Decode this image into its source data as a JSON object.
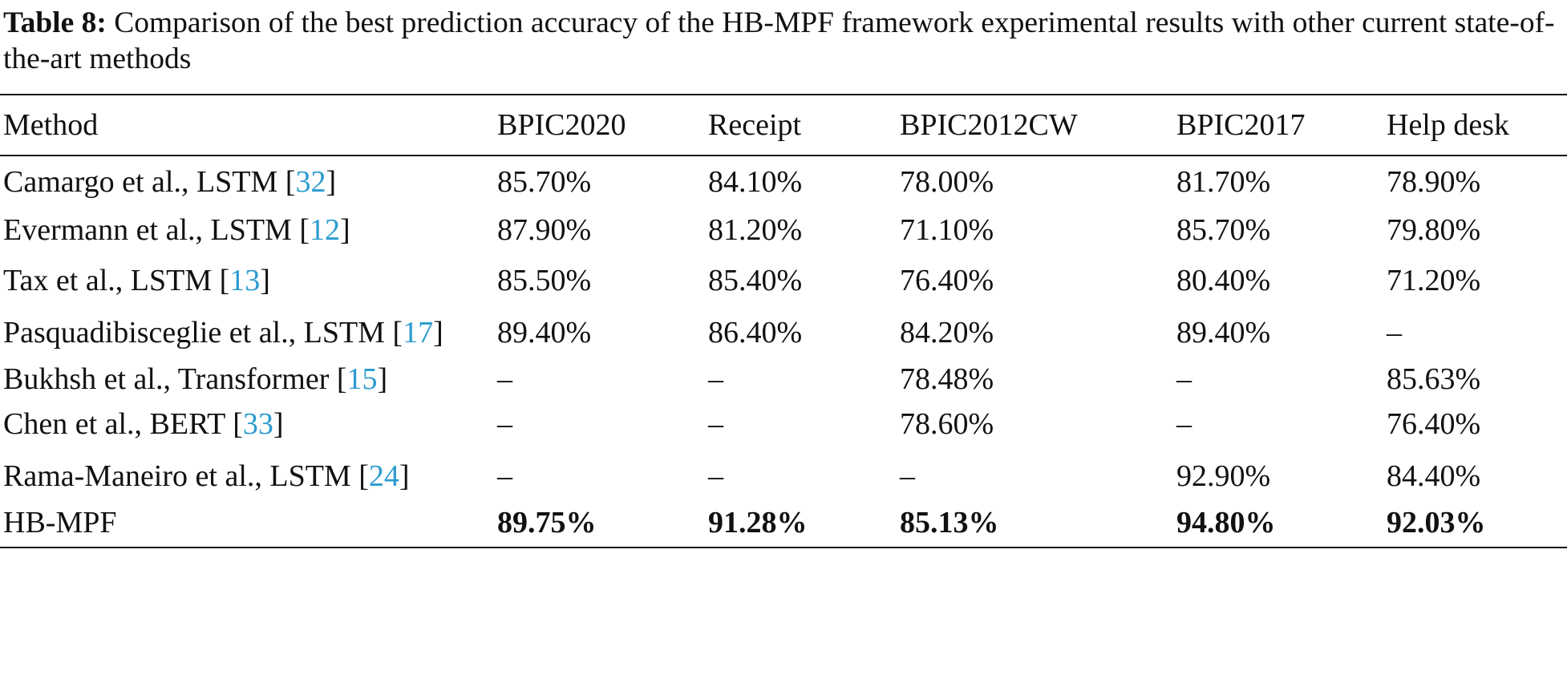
{
  "caption": {
    "label": "Table 8:",
    "text": " Comparison of the best prediction accuracy of the HB-MPF framework experimental results with other current state-of-the-art methods"
  },
  "table": {
    "headers": [
      "Method",
      "BPIC2020",
      "Receipt",
      "BPIC2012CW",
      "BPIC2017",
      "Help desk"
    ],
    "rows": [
      {
        "method": "Camargo et al., LSTM ",
        "ref": "32",
        "values": [
          "85.70%",
          "84.10%",
          "78.00%",
          "81.70%",
          "78.90%"
        ]
      },
      {
        "method": "Evermann et al., LSTM ",
        "ref": "12",
        "values": [
          "87.90%",
          "81.20%",
          "71.10%",
          "85.70%",
          "79.80%"
        ]
      },
      {
        "method": "Tax et al., LSTM ",
        "ref": "13",
        "values": [
          "85.50%",
          "85.40%",
          "76.40%",
          "80.40%",
          "71.20%"
        ]
      },
      {
        "method": "Pasquadibisceglie et al., LSTM ",
        "ref": "17",
        "values": [
          "89.40%",
          "86.40%",
          "84.20%",
          "89.40%",
          "–"
        ]
      },
      {
        "method": "Bukhsh et al., Transformer ",
        "ref": "15",
        "values": [
          "–",
          "–",
          "78.48%",
          "–",
          "85.63%"
        ]
      },
      {
        "method": "Chen et al., BERT ",
        "ref": "33",
        "values": [
          "–",
          "–",
          "78.60%",
          "–",
          "76.40%"
        ]
      },
      {
        "method": "Rama-Maneiro et al., LSTM ",
        "ref": "24",
        "values": [
          "–",
          "–",
          "–",
          "92.90%",
          "84.40%"
        ]
      },
      {
        "method": "HB-MPF",
        "values": [
          "89.75%",
          "91.28%",
          "85.13%",
          "94.80%",
          "92.03%"
        ]
      }
    ]
  },
  "colors": {
    "reference_link": "#2b9bcf",
    "text": "#111111"
  }
}
